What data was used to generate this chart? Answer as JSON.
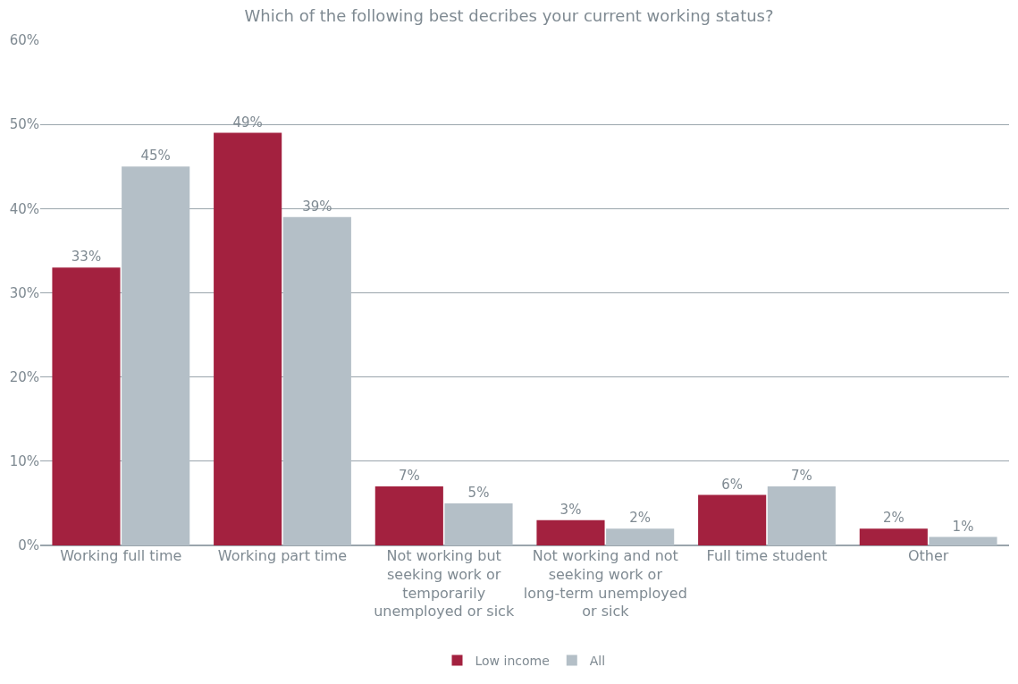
{
  "chart_data": {
    "type": "bar",
    "title": "Which of the following best decribes your current working status?",
    "categories": [
      "Working full time",
      "Working part time",
      "Not working but seeking work or temporarily unemployed or sick",
      "Not working and not seeking work or long-term unemployed or sick",
      "Full time student",
      "Other"
    ],
    "series": [
      {
        "name": "Low income",
        "color": "#a3213f",
        "values": [
          33,
          49,
          7,
          3,
          6,
          2
        ],
        "value_labels": [
          "33%",
          "49%",
          "7%",
          "3%",
          "6%",
          "2%"
        ]
      },
      {
        "name": "All",
        "color": "#b4bfc7",
        "values": [
          45,
          39,
          5,
          2,
          7,
          1
        ],
        "value_labels": [
          "45%",
          "39%",
          "5%",
          "2%",
          "7%",
          "1%"
        ]
      }
    ],
    "ylim": [
      0,
      60
    ],
    "yticks": [
      {
        "value": 0,
        "label": "0%"
      },
      {
        "value": 10,
        "label": "10%"
      },
      {
        "value": 20,
        "label": "20%"
      },
      {
        "value": 30,
        "label": "30%"
      },
      {
        "value": 40,
        "label": "40%"
      },
      {
        "value": 50,
        "label": "50%"
      },
      {
        "value": 60,
        "label": "60%"
      }
    ],
    "grid": "y",
    "legend": "bottom"
  }
}
